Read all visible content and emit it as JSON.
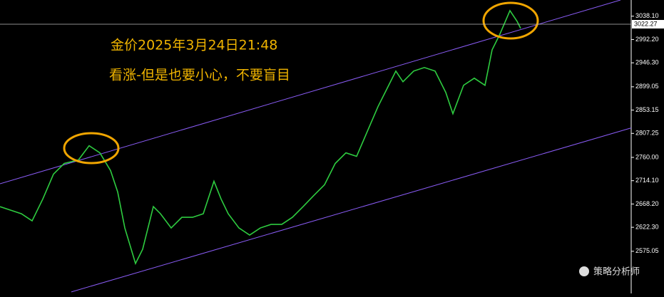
{
  "chart_data": {
    "type": "line",
    "annotations": [
      "金价2025年3月24日21:48",
      "看涨-但是也要小心，不要盲目"
    ],
    "watermark": "策略分析师",
    "xlim": [
      0,
      177
    ],
    "ylim": [
      2492,
      3070
    ],
    "yticks": [
      {
        "value": 3038.1,
        "label": "3038.10"
      },
      {
        "value": 2992.2,
        "label": "2992.20"
      },
      {
        "value": 2946.3,
        "label": "2946.30"
      },
      2899.05,
      2853.15,
      2807.25,
      {
        "value": 2760,
        "label": "2760.00"
      },
      {
        "value": 2714.1,
        "label": "2714.10"
      },
      {
        "value": 2668.2,
        "label": "2668.20"
      },
      {
        "value": 2622.3,
        "label": "2622.30"
      },
      2575.05
    ],
    "last_price": {
      "value": 3022.27,
      "label": "3022.27"
    },
    "x": [
      0,
      3,
      6,
      9,
      12,
      15,
      18,
      22,
      25,
      28,
      31,
      33,
      35,
      38,
      40,
      43,
      45,
      48,
      51,
      54,
      57,
      60,
      62,
      64,
      67,
      70,
      73,
      76,
      79,
      82,
      85,
      88,
      91,
      94,
      97,
      100,
      103,
      106,
      109,
      111,
      113,
      116,
      119,
      122,
      125,
      127,
      130,
      133,
      136,
      138,
      140,
      143,
      145,
      146
    ],
    "series": [
      {
        "name": "price",
        "color": "#2ecc40",
        "values": [
          2663,
          2656,
          2649,
          2635,
          2678,
          2727,
          2748,
          2755,
          2783,
          2769,
          2734,
          2692,
          2621,
          2551,
          2579,
          2663,
          2649,
          2621,
          2642,
          2642,
          2649,
          2713,
          2678,
          2649,
          2621,
          2607,
          2621,
          2628,
          2628,
          2642,
          2663,
          2685,
          2706,
          2748,
          2769,
          2762,
          2811,
          2860,
          2902,
          2930,
          2909,
          2930,
          2937,
          2930,
          2888,
          2846,
          2902,
          2916,
          2902,
          2972,
          3000,
          3049,
          3028,
          3014
        ]
      }
    ],
    "channel": [
      {
        "x": [
          0,
          174
        ],
        "values": [
          2708,
          3070
        ],
        "color": "#8a5cf6"
      },
      {
        "x": [
          20,
          177
        ],
        "values": [
          2495,
          2818
        ],
        "color": "#8a5cf6"
      }
    ]
  }
}
